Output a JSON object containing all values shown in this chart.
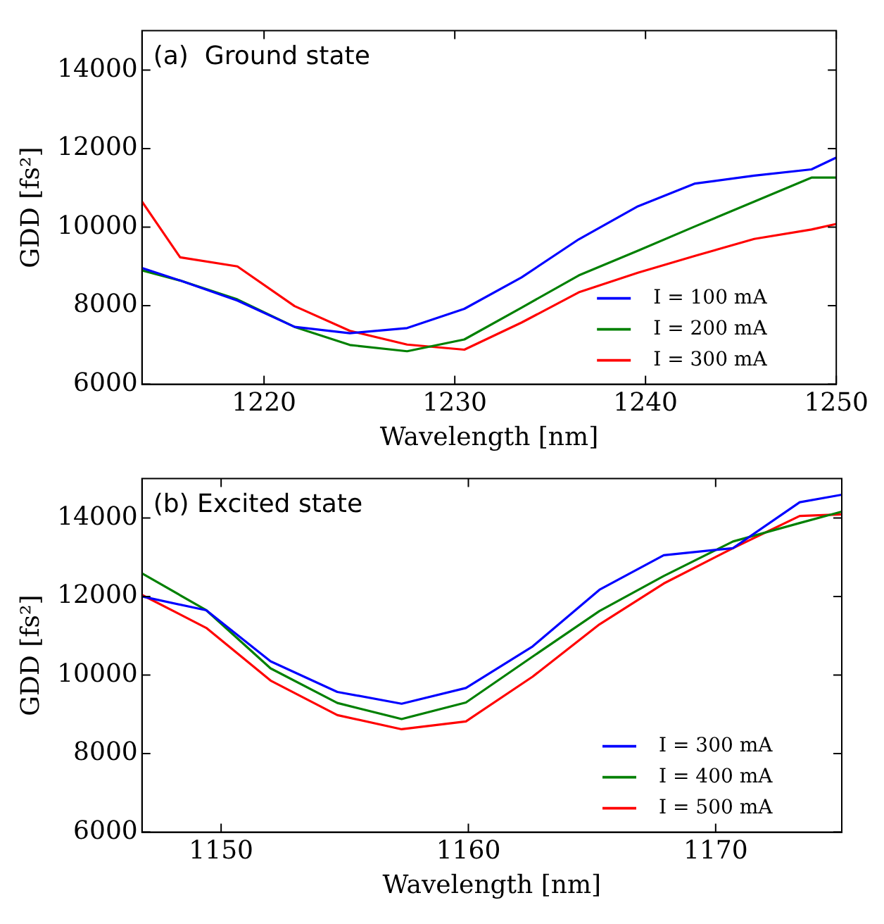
{
  "chart_data": [
    {
      "type": "line",
      "title": "(a)  Ground state",
      "xlabel": "Wavelength [nm]",
      "ylabel": "GDD [fs²]",
      "x": [
        1213.6,
        1215.6,
        1218.6,
        1221.6,
        1224.5,
        1227.5,
        1230.5,
        1233.5,
        1236.5,
        1239.6,
        1242.6,
        1245.7,
        1248.7,
        1250
      ],
      "series": [
        {
          "name": "I = 100 mA",
          "color": "#0000ff",
          "values": [
            8960,
            8640,
            8130,
            7460,
            7300,
            7430,
            7920,
            8720,
            9690,
            10530,
            11110,
            11310,
            11470,
            11770
          ]
        },
        {
          "name": "I = 200 mA",
          "color": "#008000",
          "values": [
            8900,
            8640,
            8160,
            7460,
            7000,
            6840,
            7140,
            7950,
            8770,
            9400,
            10020,
            10650,
            11260,
            11260
          ]
        },
        {
          "name": "I = 300 mA",
          "color": "#ff0000",
          "values": [
            10650,
            9230,
            9000,
            7990,
            7360,
            7010,
            6880,
            7570,
            8340,
            8840,
            9270,
            9700,
            9940,
            10080
          ]
        }
      ],
      "xlim": [
        1213.6,
        1250
      ],
      "xticks": [
        1220,
        1230,
        1240,
        1250
      ],
      "ylim": [
        6000,
        15000
      ],
      "yticks": [
        6000,
        8000,
        10000,
        12000,
        14000
      ],
      "grid": false,
      "legend": "bottom right",
      "line_style": "solid",
      "marker": "none"
    },
    {
      "type": "line",
      "title": "(b) Excited state",
      "xlabel": "Wavelength [nm]",
      "ylabel": "GDD [fs²]",
      "x": [
        1146.8,
        1149.4,
        1152.0,
        1154.7,
        1157.3,
        1159.9,
        1162.6,
        1165.3,
        1167.9,
        1170.7,
        1173.4,
        1175.1
      ],
      "series": [
        {
          "name": "I = 300 mA",
          "color": "#0000ff",
          "values": [
            12000,
            11650,
            10350,
            9570,
            9270,
            9670,
            10730,
            12170,
            13050,
            13230,
            14400,
            14590
          ]
        },
        {
          "name": "I = 400 mA",
          "color": "#008000",
          "values": [
            12590,
            11650,
            10170,
            9290,
            8880,
            9300,
            10470,
            11630,
            12520,
            13400,
            13870,
            14160
          ]
        },
        {
          "name": "I = 500 mA",
          "color": "#ff0000",
          "values": [
            12040,
            11200,
            9860,
            8980,
            8620,
            8820,
            9960,
            11290,
            12330,
            13230,
            14050,
            14090
          ]
        }
      ],
      "xlim": [
        1146.8,
        1175.1
      ],
      "xticks": [
        1150,
        1160,
        1170
      ],
      "ylim": [
        6000,
        15000
      ],
      "yticks": [
        6000,
        8000,
        10000,
        12000,
        14000
      ],
      "grid": false,
      "legend": "bottom right",
      "line_style": "solid",
      "marker": "none"
    }
  ]
}
